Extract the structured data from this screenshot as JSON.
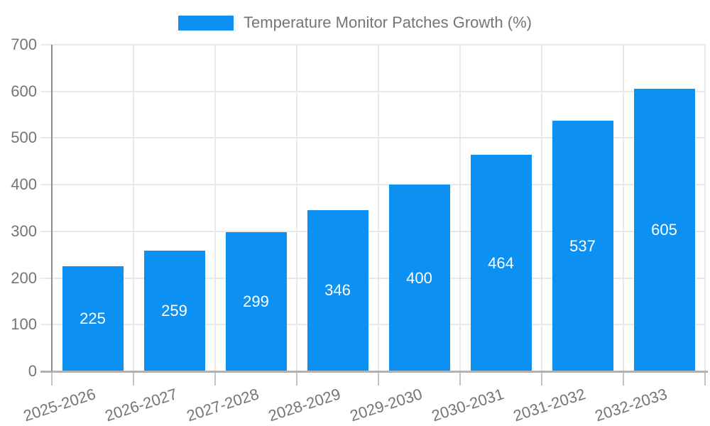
{
  "legend": {
    "swatch": "series-color-swatch",
    "label": "Temperature Monitor Patches Growth (%)"
  },
  "chart_data": {
    "type": "bar",
    "title": "Temperature Monitor Patches Growth (%)",
    "categories": [
      "2025-2026",
      "2026-2027",
      "2027-2028",
      "2028-2029",
      "2029-2030",
      "2030-2031",
      "2031-2032",
      "2032-2033"
    ],
    "values": [
      225,
      259,
      299,
      346,
      400,
      464,
      537,
      605
    ],
    "series": [
      {
        "name": "Temperature Monitor Patches Growth (%)",
        "values": [
          225,
          259,
          299,
          346,
          400,
          464,
          537,
          605
        ]
      }
    ],
    "xlabel": "",
    "ylabel": "",
    "ylim": [
      0,
      700
    ],
    "yticks": [
      0,
      100,
      200,
      300,
      400,
      500,
      600,
      700
    ],
    "grid": true,
    "legend_position": "top",
    "x_label_rotation_deg": -18,
    "bar_value_labels_inside": true
  },
  "colors": {
    "bar": "#0c90f2",
    "bar_label": "#ffffff",
    "axis_text": "#757575",
    "grid": "#e9e9e9",
    "boundary_tick": "#c4c4c4",
    "y_axis_line": "#8c8c8c",
    "x_axis_line": "#b2b2b2",
    "background": "#ffffff"
  }
}
